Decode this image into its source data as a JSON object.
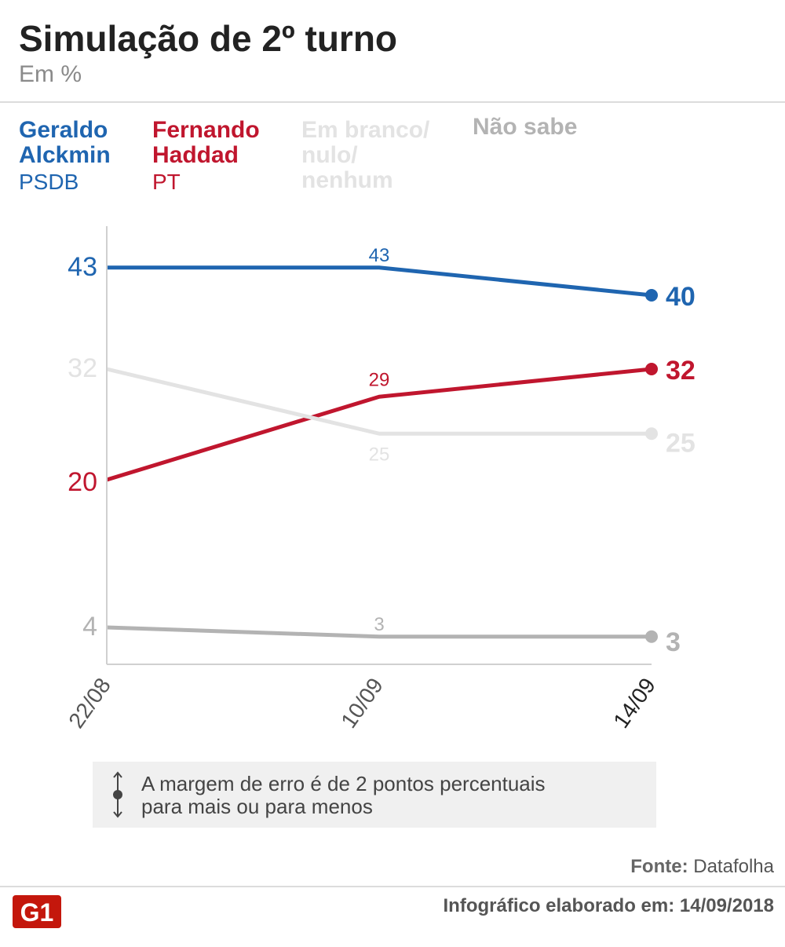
{
  "header": {
    "title": "Simulação de 2º turno",
    "subtitle": "Em %"
  },
  "legend": [
    {
      "name": "Geraldo\nAlckmin",
      "party": "PSDB",
      "color": "#1f65b0"
    },
    {
      "name": "Fernando\nHaddad",
      "party": "PT",
      "color": "#c0162e"
    },
    {
      "name": "Em branco/\nnulo/\nnenhum",
      "party": "",
      "color": "#e3e3e3"
    },
    {
      "name": "Não sabe",
      "party": "",
      "color": "#b3b3b3"
    }
  ],
  "chart_data": {
    "type": "line",
    "x": [
      "22/08",
      "10/09",
      "14/09"
    ],
    "ylim": [
      0,
      48
    ],
    "grid": false,
    "series": [
      {
        "name": "Geraldo Alckmin",
        "values": [
          43,
          43,
          40
        ],
        "color": "#1f65b0",
        "point_labels": [
          "43",
          "43",
          "40"
        ]
      },
      {
        "name": "Fernando Haddad",
        "values": [
          20,
          29,
          32
        ],
        "color": "#c0162e",
        "point_labels": [
          "20",
          "29",
          "32"
        ]
      },
      {
        "name": "Em branco/nulo/nenhum",
        "values": [
          32,
          25,
          25
        ],
        "color": "#e3e3e3",
        "point_labels": [
          "32",
          "25",
          "25"
        ]
      },
      {
        "name": "Não sabe",
        "values": [
          4,
          3,
          3
        ],
        "color": "#b3b3b3",
        "point_labels": [
          "4",
          "3",
          "3"
        ]
      }
    ]
  },
  "note": {
    "text": "A margem de erro é de 2 pontos percentuais\npara mais ou para menos"
  },
  "footer": {
    "source_label": "Fonte:",
    "source_value": "Datafolha",
    "credit": "Infográfico elaborado em: 14/09/2018",
    "logo_text": "G1",
    "logo_color": "#c4170c"
  }
}
